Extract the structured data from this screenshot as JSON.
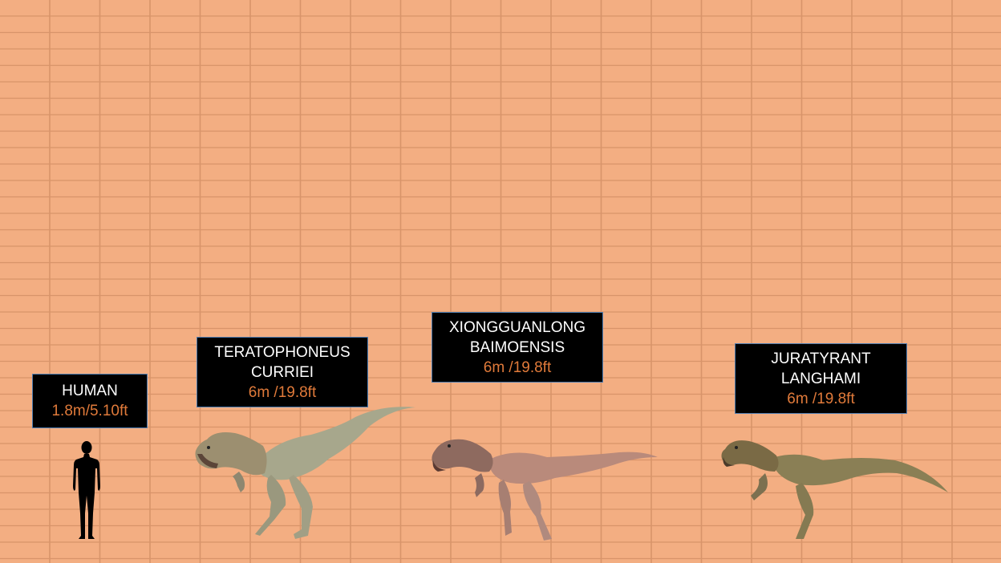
{
  "colors": {
    "background": "#f3ae82",
    "grid_line": "#d8946a",
    "label_bg": "#000000",
    "label_border": "#4f7db0",
    "label_name": "#ffffff",
    "label_size": "#e07a3a"
  },
  "specimens": [
    {
      "name_lines": [
        "HUMAN"
      ],
      "size": "1.8m/5.10ft",
      "icon": "human-silhouette-icon"
    },
    {
      "name_lines": [
        "TERATOPHONEUS",
        "CURRIEI"
      ],
      "size": "6m /19.8ft",
      "icon": "teratophoneus-icon"
    },
    {
      "name_lines": [
        "XIONGGUANLONG",
        "BAIMOENSIS"
      ],
      "size": "6m /19.8ft",
      "icon": "xiongguanlong-icon"
    },
    {
      "name_lines": [
        "JURATYRANT",
        "LANGHAMI"
      ],
      "size": "6m /19.8ft",
      "icon": "juratyrant-icon"
    }
  ]
}
